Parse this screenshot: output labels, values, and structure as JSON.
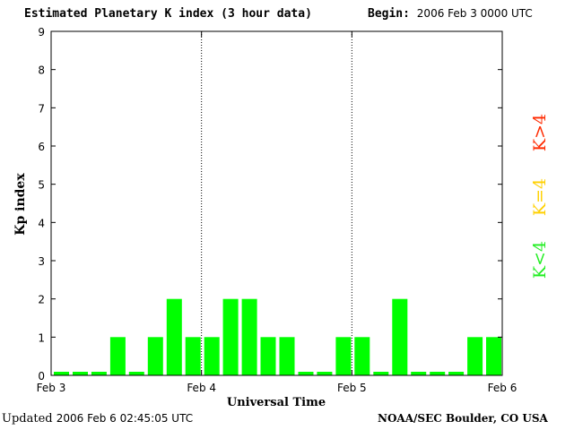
{
  "header": {
    "title": "Estimated Planetary K index (3 hour data)",
    "begin_label": "Begin:",
    "begin_value": "2006 Feb 3 0000 UTC"
  },
  "footer": {
    "updated_label": "Updated",
    "updated_value": "2006 Feb  6 02:45:05 UTC",
    "credit": "NOAA/SEC Boulder, CO USA"
  },
  "legend": {
    "items": [
      {
        "label": "K>4",
        "color": "#ff2a00"
      },
      {
        "label": "K=4",
        "color": "#ffd000"
      },
      {
        "label": "K<4",
        "color": "#22ee22"
      }
    ]
  },
  "chart_data": {
    "type": "bar",
    "ylabel": "Kp index",
    "xlabel": "Universal Time",
    "ylim": [
      0,
      9
    ],
    "yticks": [
      0,
      1,
      2,
      3,
      4,
      5,
      6,
      7,
      8,
      9
    ],
    "x_tick_labels": [
      "Feb 3",
      "Feb 4",
      "Feb 5",
      "Feb 6"
    ],
    "bar_color": "#00ff00",
    "values": [
      0,
      0,
      0,
      1,
      0,
      1,
      2,
      1,
      1,
      2,
      2,
      1,
      1,
      0,
      0,
      1,
      1,
      0,
      2,
      0,
      0,
      0,
      1,
      1
    ]
  }
}
